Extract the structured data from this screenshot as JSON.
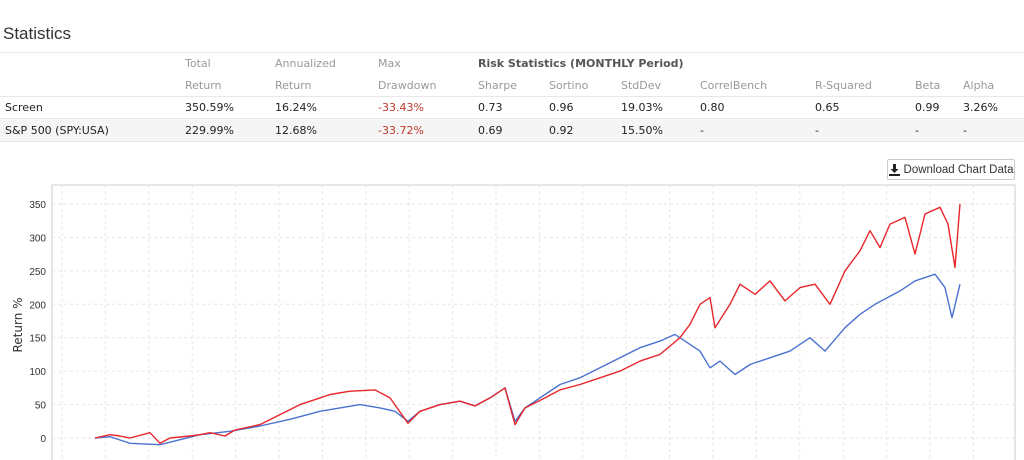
{
  "title": "Statistics",
  "table": {
    "header1": [
      "Total",
      "Annualized",
      "Max",
      "Risk Statistics (MONTHLY Period)"
    ],
    "header2": [
      "Return",
      "Return",
      "Drawdown",
      "Sharpe",
      "Sortino",
      "StdDev",
      "CorrelBench",
      "R-Squared",
      "Beta",
      "Alpha"
    ],
    "rows": [
      {
        "name": "Screen",
        "cells": [
          "350.59%",
          "16.24%",
          "-33.43%",
          "0.73",
          "0.96",
          "19.03%",
          "0.80",
          "0.65",
          "0.99",
          "3.26%"
        ]
      },
      {
        "name": "S&P 500 (SPY:USA)",
        "cells": [
          "229.99%",
          "12.68%",
          "-33.72%",
          "0.69",
          "0.92",
          "15.50%",
          "-",
          "-",
          "-",
          "-"
        ]
      }
    ]
  },
  "download_label": "Download Chart Data",
  "chart_data": {
    "type": "line",
    "ylabel": "Return %",
    "xlabel": "",
    "ylim": [
      -30,
      375
    ],
    "yticks": [
      0,
      50,
      100,
      150,
      200,
      250,
      300,
      350
    ],
    "grid": true,
    "series": [
      {
        "name": "Screen",
        "color": "#e8262b",
        "x": [
          0,
          15,
          25,
          35,
          55,
          65,
          75,
          95,
          105,
          115,
          130,
          140,
          165,
          185,
          205,
          225,
          235,
          255,
          280,
          295,
          313,
          325,
          345,
          365,
          380,
          395,
          410,
          420,
          430,
          450,
          465,
          485,
          505,
          525,
          545,
          565,
          585,
          595,
          605,
          615,
          620,
          635,
          645,
          660,
          675,
          690,
          705,
          720,
          735,
          750,
          765,
          775,
          785,
          795,
          810,
          820,
          830,
          845,
          853,
          860,
          865
        ],
        "y": [
          0,
          5,
          3,
          0,
          8,
          -8,
          0,
          3,
          5,
          8,
          3,
          12,
          20,
          35,
          50,
          60,
          65,
          70,
          72,
          60,
          22,
          40,
          50,
          55,
          48,
          60,
          75,
          20,
          45,
          60,
          72,
          80,
          90,
          100,
          115,
          125,
          150,
          170,
          200,
          210,
          165,
          200,
          230,
          215,
          235,
          205,
          225,
          230,
          200,
          250,
          280,
          310,
          285,
          320,
          330,
          275,
          335,
          345,
          320,
          255,
          350
        ]
      },
      {
        "name": "S&P 500 (SPY:USA)",
        "color": "#4a72cf",
        "x": [
          0,
          15,
          25,
          35,
          65,
          105,
          135,
          165,
          195,
          225,
          245,
          265,
          285,
          300,
          313,
          325,
          345,
          365,
          380,
          395,
          410,
          420,
          430,
          450,
          465,
          485,
          505,
          525,
          545,
          565,
          580,
          595,
          605,
          615,
          625,
          640,
          655,
          675,
          695,
          715,
          730,
          750,
          765,
          780,
          805,
          820,
          840,
          850,
          857,
          865
        ],
        "y": [
          0,
          2,
          -3,
          -8,
          -10,
          5,
          10,
          18,
          28,
          40,
          45,
          50,
          45,
          40,
          25,
          40,
          50,
          55,
          48,
          60,
          75,
          25,
          45,
          65,
          80,
          90,
          105,
          120,
          135,
          145,
          155,
          140,
          130,
          105,
          115,
          95,
          110,
          120,
          130,
          150,
          130,
          165,
          185,
          200,
          220,
          235,
          245,
          225,
          180,
          230
        ]
      }
    ]
  }
}
